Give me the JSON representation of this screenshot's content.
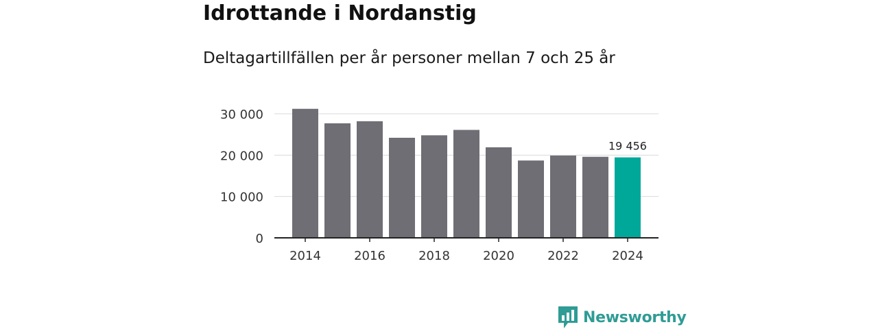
{
  "header": {
    "title": "Idrottande i Nordanstig",
    "subtitle": "Deltagartillfällen per år personer mellan 7 och 25 år"
  },
  "brand": {
    "name": "Newsworthy",
    "icon": "newsworthy-logo-icon",
    "color": "#2f9c95"
  },
  "colors": {
    "bar": "#6f6e74",
    "highlight": "#00a89a",
    "grid": "#d9d9d9",
    "axis": "#222222"
  },
  "chart_data": {
    "type": "bar",
    "title": "Idrottande i Nordanstig",
    "subtitle": "Deltagartillfällen per år personer mellan 7 och 25 år",
    "xlabel": "",
    "ylabel": "",
    "categories": [
      "2014",
      "2015",
      "2016",
      "2017",
      "2018",
      "2019",
      "2020",
      "2021",
      "2022",
      "2023",
      "2024"
    ],
    "values": [
      31200,
      27700,
      28200,
      24200,
      24800,
      26100,
      21900,
      18700,
      19900,
      19600,
      19456
    ],
    "highlight_index": 10,
    "data_labels": [
      {
        "index": 10,
        "text": "19 456"
      }
    ],
    "xtick_labels": [
      "2014",
      "2016",
      "2018",
      "2020",
      "2022",
      "2024"
    ],
    "yticks": [
      {
        "value": 0,
        "label": "0"
      },
      {
        "value": 10000,
        "label": "10 000"
      },
      {
        "value": 20000,
        "label": "20 000"
      },
      {
        "value": 30000,
        "label": "30 000"
      }
    ],
    "ylim": [
      0,
      30000
    ],
    "grid": true
  }
}
